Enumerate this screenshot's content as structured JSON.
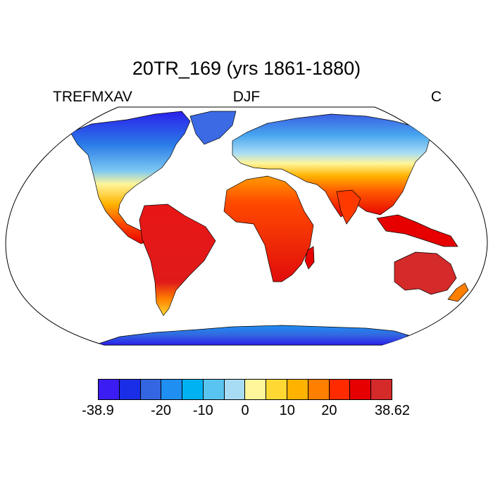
{
  "title": "20TR_169 (yrs 1861-1880)",
  "left_string": "TREFMXAV",
  "center_string": "DJF",
  "right_string": "C",
  "map": {
    "projection": "Robinson",
    "land_fill": "filled contours (temperature)",
    "ocean_fill": "#ffffff"
  },
  "colorbar": {
    "colors": [
      "#3b1cf2",
      "#1a2ee8",
      "#3366e0",
      "#1f8ff2",
      "#00b2f2",
      "#5ac4f0",
      "#a8dcf4",
      "#fff59a",
      "#ffd833",
      "#ffb300",
      "#ff7f00",
      "#ff2a00",
      "#e60000",
      "#d42a2a"
    ],
    "tick_labels": [
      {
        "label": "-38.9",
        "index": 0
      },
      {
        "label": "-20",
        "index": 3
      },
      {
        "label": "-10",
        "index": 5
      },
      {
        "label": "0",
        "index": 7
      },
      {
        "label": "10",
        "index": 9
      },
      {
        "label": "20",
        "index": 11
      },
      {
        "label": "38.62",
        "index": 14
      }
    ]
  }
}
